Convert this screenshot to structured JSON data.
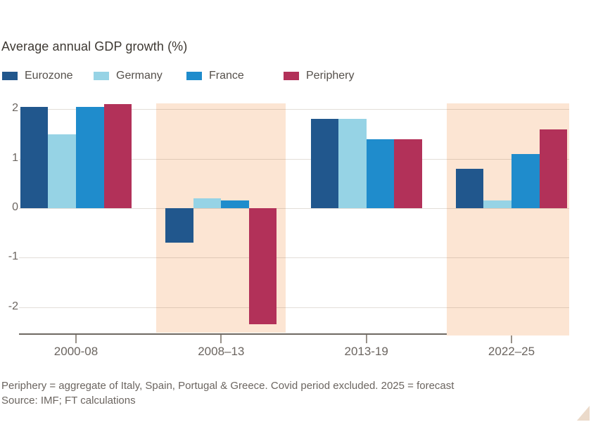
{
  "title": "Average annual GDP growth (%)",
  "legend": [
    {
      "label": "Eurozone",
      "color": "#21578D"
    },
    {
      "label": "Germany",
      "color": "#96D3E5"
    },
    {
      "label": "France",
      "color": "#1F8CCC"
    },
    {
      "label": "Periphery",
      "color": "#B23159"
    }
  ],
  "chart_data": {
    "type": "bar",
    "title": "Average annual GDP growth (%)",
    "xlabel": "",
    "ylabel": "",
    "categories": [
      "2000-08",
      "2008–13",
      "2013-19",
      "2022–25"
    ],
    "series": [
      {
        "name": "Eurozone",
        "color": "#21578D",
        "values": [
          2.05,
          -0.7,
          1.8,
          0.8
        ]
      },
      {
        "name": "Germany",
        "color": "#96D3E5",
        "values": [
          1.5,
          0.2,
          1.8,
          0.15
        ]
      },
      {
        "name": "France",
        "color": "#1F8CCC",
        "values": [
          2.05,
          0.15,
          1.4,
          1.1
        ]
      },
      {
        "name": "Periphery",
        "color": "#B23159",
        "values": [
          2.1,
          -2.35,
          1.4,
          1.6
        ]
      }
    ],
    "y_ticks": [
      2,
      1,
      0,
      -1,
      -2
    ],
    "ylim": [
      -2.52,
      2.15
    ],
    "grid": "horizontal",
    "legend_position": "top",
    "highlighted_categories": [
      "2008–13",
      "2022–25"
    ],
    "highlight_color": "#FCE5D3"
  },
  "footnote": "Periphery = aggregate of Italy, Spain, Portugal & Greece. Covid period excluded. 2025 = forecast",
  "source": "Source: IMF; FT calculations",
  "colors": {
    "background": "#FFFFFF",
    "band": "#FCE5D3",
    "axis_line": "#6E6862",
    "text_dark": "#3E3933",
    "text_muted": "#6B6560",
    "corner_triangle": "#EBDACA"
  }
}
